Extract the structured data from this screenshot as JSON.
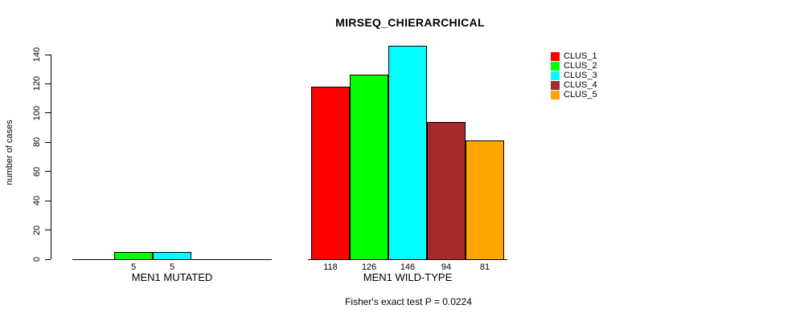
{
  "title": "MIRSEQ_CHIERARCHICAL",
  "y_axis": {
    "label": "number of cases",
    "ticks": [
      0,
      20,
      40,
      60,
      80,
      100,
      120,
      140
    ]
  },
  "legend": {
    "entries": [
      {
        "label": "CLUS_1",
        "color": "#FF0000"
      },
      {
        "label": "CLUS_2",
        "color": "#00FF00"
      },
      {
        "label": "CLUS_3",
        "color": "#00FFFF"
      },
      {
        "label": "CLUS_4",
        "color": "#A52A2A"
      },
      {
        "label": "CLUS_5",
        "color": "#FFA500"
      }
    ]
  },
  "footer": "Fisher's exact test P = 0.0224",
  "chart_data": {
    "type": "bar",
    "title": "MIRSEQ_CHIERARCHICAL",
    "ylabel": "number of cases",
    "xlabel": "",
    "ylim": [
      0,
      140
    ],
    "yticks": [
      0,
      20,
      40,
      60,
      80,
      100,
      120,
      140
    ],
    "grid": false,
    "legend_position": "top-right",
    "series_names": [
      "CLUS_1",
      "CLUS_2",
      "CLUS_3",
      "CLUS_4",
      "CLUS_5"
    ],
    "series_colors": [
      "#FF0000",
      "#00FF00",
      "#00FFFF",
      "#A52A2A",
      "#FFA500"
    ],
    "categories": [
      "MEN1 MUTATED",
      "MEN1 WILD-TYPE"
    ],
    "groups": [
      {
        "label": "MEN1 MUTATED",
        "values": [
          0,
          5,
          5,
          0,
          0
        ]
      },
      {
        "label": "MEN1 WILD-TYPE",
        "values": [
          118,
          126,
          146,
          94,
          81
        ]
      }
    ],
    "bar_value_labels_shown_for_nonzero_only": true,
    "annotation": "Fisher's exact test P = 0.0224"
  }
}
